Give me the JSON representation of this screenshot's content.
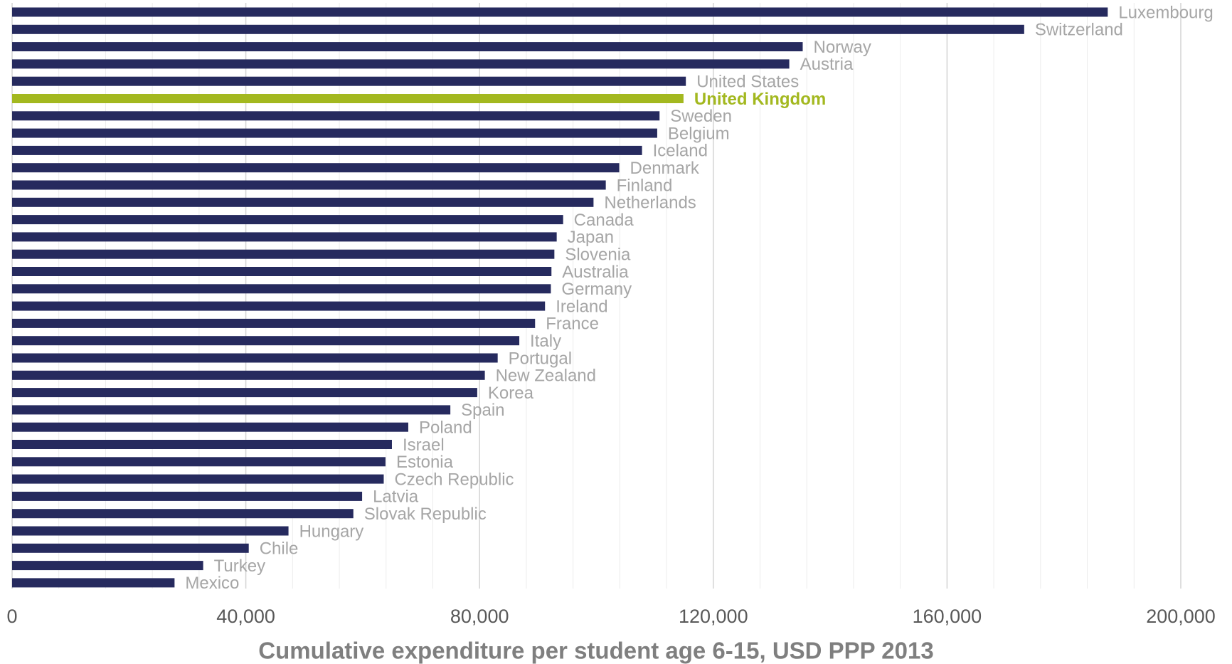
{
  "chart_data": {
    "type": "barh",
    "xlabel": "Cumulative expenditure per student age 6-15, USD PPP 2013",
    "categories": [
      "Luxembourg",
      "Switzerland",
      "Norway",
      "Austria",
      "United States",
      "United Kingdom",
      "Sweden",
      "Belgium",
      "Iceland",
      "Denmark",
      "Finland",
      "Netherlands",
      "Canada",
      "Japan",
      "Slovenia",
      "Australia",
      "Germany",
      "Ireland",
      "France",
      "Italy",
      "Portugal",
      "New Zealand",
      "Korea",
      "Spain",
      "Poland",
      "Israel",
      "Estonia",
      "Czech Republic",
      "Latvia",
      "Slovak Republic",
      "Hungary",
      "Chile",
      "Turkey",
      "Mexico"
    ],
    "values": [
      187500,
      173200,
      135300,
      133000,
      115300,
      114900,
      110800,
      110400,
      107800,
      103900,
      101600,
      99500,
      94300,
      93200,
      92800,
      92300,
      92200,
      91200,
      89500,
      86800,
      83100,
      80900,
      79600,
      75000,
      67800,
      65000,
      63900,
      63600,
      59900,
      58400,
      47300,
      40500,
      32700,
      27800
    ],
    "color": "#262a5e",
    "colors": [
      "#262a5e",
      "#262a5e",
      "#262a5e",
      "#262a5e",
      "#262a5e",
      "#a3b81f",
      "#262a5e",
      "#262a5e",
      "#262a5e",
      "#262a5e",
      "#262a5e",
      "#262a5e",
      "#262a5e",
      "#262a5e",
      "#262a5e",
      "#262a5e",
      "#262a5e",
      "#262a5e",
      "#262a5e",
      "#262a5e",
      "#262a5e",
      "#262a5e",
      "#262a5e",
      "#262a5e",
      "#262a5e",
      "#262a5e",
      "#262a5e",
      "#262a5e",
      "#262a5e",
      "#262a5e",
      "#262a5e",
      "#262a5e",
      "#262a5e",
      "#262a5e"
    ],
    "label_color": "#a6a6a6",
    "xlim": [
      0,
      200000
    ],
    "xticks": [
      0,
      {
        "value": 40000,
        "label": "40,000"
      },
      {
        "value": 80000,
        "label": "80,000"
      },
      {
        "value": 120000,
        "label": "120,000"
      },
      {
        "value": 160000,
        "label": "160,000"
      },
      {
        "value": 200000,
        "label": "200,000"
      }
    ],
    "minor_gridlines": [
      8000,
      16000,
      24000,
      32000,
      48000,
      56000,
      64000,
      72000,
      88000,
      96000,
      104000,
      112000,
      128000,
      136000,
      144000,
      152000,
      168000,
      176000,
      184000,
      192000
    ],
    "grid": true
  }
}
